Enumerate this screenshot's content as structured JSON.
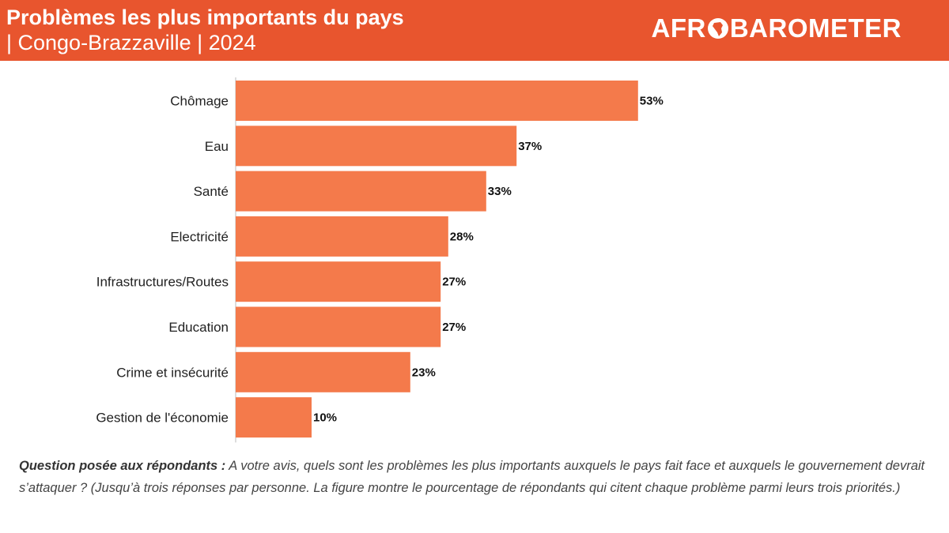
{
  "header": {
    "title": "Problèmes les plus importants du pays",
    "subtitle": "| Congo-Brazzaville | 2024",
    "logo_left": "AFR",
    "logo_right": "BAROMETER",
    "logo_icon": "africa-globe-icon"
  },
  "colors": {
    "header_bg": "#e8552e",
    "bar": "#f47a4b"
  },
  "chart_data": {
    "type": "bar",
    "orientation": "horizontal",
    "categories": [
      "Chômage",
      "Eau",
      "Santé",
      "Electricité",
      "Infrastructures/Routes",
      "Education",
      "Crime et insécurité",
      "Gestion de l'économie"
    ],
    "values": [
      53,
      37,
      33,
      28,
      27,
      27,
      23,
      10
    ],
    "value_labels": [
      "53%",
      "37%",
      "33%",
      "28%",
      "27%",
      "27%",
      "23%",
      "10%"
    ],
    "title": "Problèmes les plus importants du pays",
    "xlabel": "",
    "ylabel": "",
    "xlim": [
      0,
      100
    ],
    "grid": false,
    "legend": "none"
  },
  "footnote": {
    "lead": "Question posée aux répondants :",
    "text": " A votre avis, quels sont les problèmes les plus importants auxquels le pays fait face et auxquels le gouvernement devrait s’attaquer ? (Jusqu’à trois réponses par personne. La figure montre le pourcentage de répondants qui citent chaque problème parmi leurs trois priorités.)"
  }
}
